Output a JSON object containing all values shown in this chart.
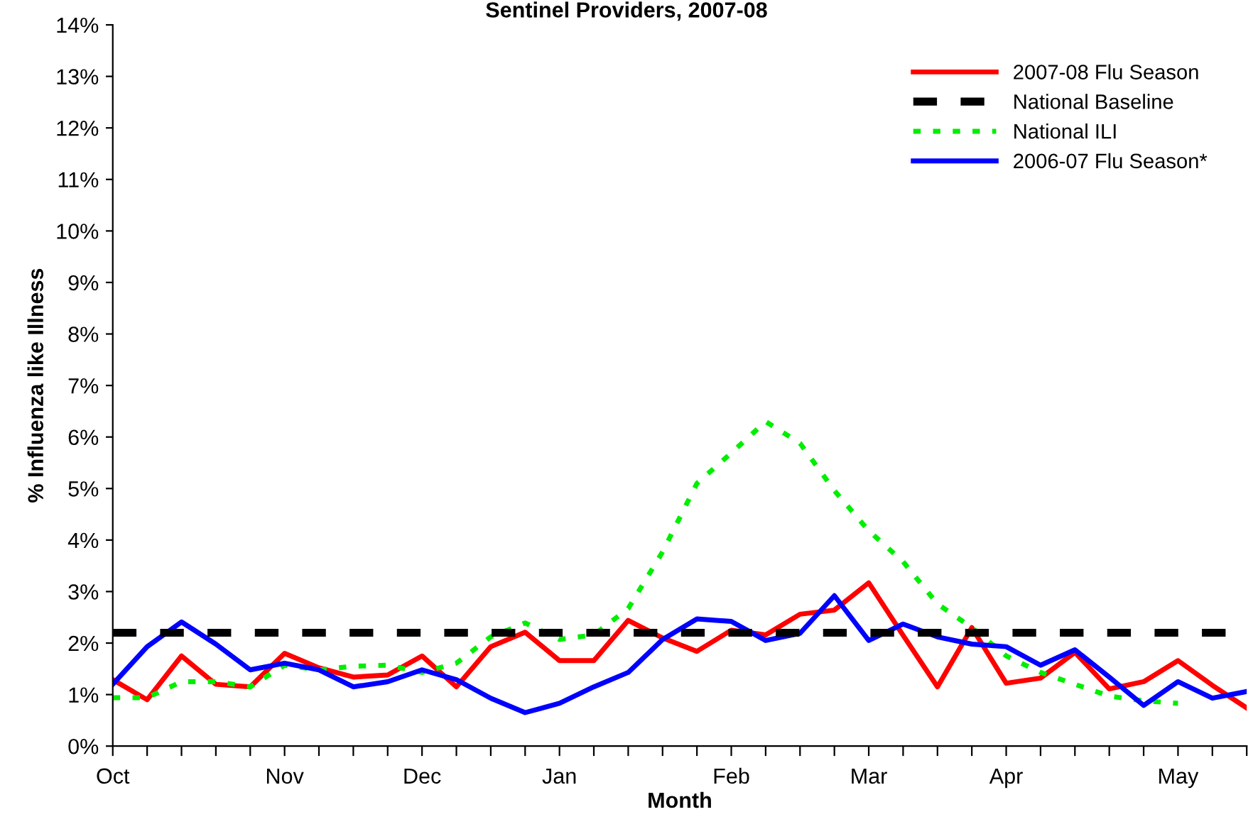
{
  "chart_data": {
    "type": "line",
    "title": "Sentinel Providers, 2007-08",
    "xlabel": "Month",
    "ylabel": "% Influenza like Illness",
    "categories": [
      "Oct",
      null,
      null,
      null,
      null,
      "Nov",
      null,
      null,
      null,
      "Dec",
      null,
      null,
      null,
      "Jan",
      null,
      null,
      null,
      null,
      "Feb",
      null,
      null,
      null,
      "Mar",
      null,
      null,
      null,
      "Apr",
      null,
      null,
      null,
      null,
      "May",
      null,
      null
    ],
    "series": [
      {
        "name": "2007-08 Flu Season",
        "color": "#ff0000",
        "line_style": "solid",
        "values": [
          1.29,
          0.9,
          1.75,
          1.2,
          1.15,
          1.8,
          1.52,
          1.34,
          1.38,
          1.75,
          1.15,
          1.93,
          2.21,
          1.66,
          1.66,
          2.44,
          2.1,
          1.84,
          2.25,
          2.16,
          2.56,
          2.64,
          3.17,
          2.15,
          1.15,
          2.3,
          1.22,
          1.32,
          1.82,
          1.11,
          1.25,
          1.66,
          1.18,
          0.74
        ]
      },
      {
        "name": "National ILI",
        "color": "#00ee00",
        "line_style": "dotted",
        "values": [
          0.94,
          0.94,
          1.25,
          1.25,
          1.15,
          1.57,
          1.48,
          1.55,
          1.57,
          1.43,
          1.61,
          2.12,
          2.39,
          2.07,
          2.16,
          2.67,
          3.77,
          5.1,
          5.69,
          6.3,
          5.88,
          4.96,
          4.18,
          3.58,
          2.76,
          2.3,
          1.75,
          1.43,
          1.2,
          0.97,
          0.88,
          0.83,
          null,
          null
        ]
      },
      {
        "name": "2006-07 Flu Season*",
        "color": "#0000ff",
        "line_style": "solid",
        "values": [
          1.2,
          1.93,
          2.41,
          1.98,
          1.48,
          1.61,
          1.48,
          1.15,
          1.25,
          1.48,
          1.29,
          0.93,
          0.65,
          0.83,
          1.15,
          1.43,
          2.07,
          2.47,
          2.42,
          2.05,
          2.19,
          2.92,
          2.05,
          2.37,
          2.12,
          1.98,
          1.93,
          1.57,
          1.87,
          1.34,
          0.79,
          1.25,
          0.93,
          1.06
        ]
      }
    ],
    "ref_lines": [
      {
        "axis": "y",
        "value": 2.2,
        "label": "National Baseline",
        "color": "#000000",
        "line_style": "dashed"
      }
    ],
    "ylim": [
      0,
      14
    ],
    "yticks": [
      {
        "value": 0,
        "label": "0%"
      },
      {
        "value": 1,
        "label": "1%"
      },
      {
        "value": 2,
        "label": "2%"
      },
      {
        "value": 3,
        "label": "3%"
      },
      {
        "value": 4,
        "label": "4%"
      },
      {
        "value": 5,
        "label": "5%"
      },
      {
        "value": 6,
        "label": "6%"
      },
      {
        "value": 7,
        "label": "7%"
      },
      {
        "value": 8,
        "label": "8%"
      },
      {
        "value": 9,
        "label": "9%"
      },
      {
        "value": 10,
        "label": "10%"
      },
      {
        "value": 11,
        "label": "11%"
      },
      {
        "value": 12,
        "label": "12%"
      },
      {
        "value": 13,
        "label": "13%"
      },
      {
        "value": 14,
        "label": "14%"
      }
    ],
    "grid": false,
    "legend": "top right"
  }
}
